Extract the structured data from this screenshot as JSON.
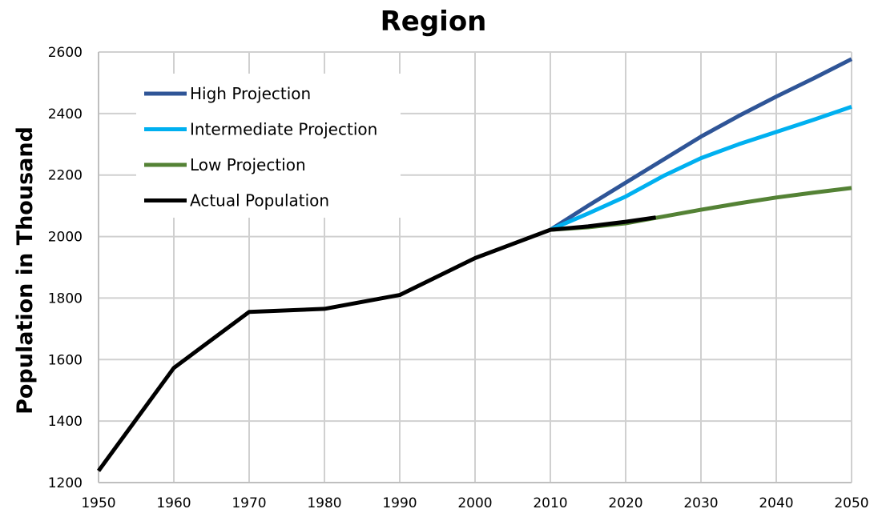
{
  "chart_data": {
    "type": "line",
    "title": "Region",
    "xlabel": "",
    "ylabel": "Population in  Thousand",
    "xlim": [
      1950,
      2050
    ],
    "ylim": [
      1200,
      2600
    ],
    "xticks": [
      1950,
      1960,
      1970,
      1980,
      1990,
      2000,
      2010,
      2020,
      2030,
      2040,
      2050
    ],
    "yticks": [
      1200,
      1400,
      1600,
      1800,
      2000,
      2200,
      2400,
      2600
    ],
    "grid": true,
    "legend_position": "top-left",
    "series": [
      {
        "name": "High Projection",
        "color": "#2F5597",
        "x": [
          2010,
          2015,
          2020,
          2025,
          2030,
          2035,
          2040,
          2045,
          2050
        ],
        "y": [
          2022,
          2100,
          2175,
          2250,
          2325,
          2392,
          2455,
          2515,
          2577
        ]
      },
      {
        "name": "Intermediate Projection",
        "color": "#00B0F0",
        "x": [
          2010,
          2015,
          2020,
          2025,
          2030,
          2035,
          2040,
          2045,
          2050
        ],
        "y": [
          2022,
          2075,
          2130,
          2197,
          2255,
          2300,
          2340,
          2380,
          2422
        ]
      },
      {
        "name": "Low Projection",
        "color": "#548235",
        "x": [
          2010,
          2015,
          2020,
          2025,
          2030,
          2035,
          2040,
          2045,
          2050
        ],
        "y": [
          2022,
          2030,
          2043,
          2065,
          2087,
          2108,
          2127,
          2143,
          2158
        ]
      },
      {
        "name": "Actual Population",
        "color": "#000000",
        "x": [
          1950,
          1960,
          1970,
          1980,
          1990,
          2000,
          2010,
          2015,
          2020,
          2024
        ],
        "y": [
          1238,
          1573,
          1755,
          1765,
          1810,
          1930,
          2022,
          2033,
          2048,
          2062
        ]
      }
    ]
  }
}
